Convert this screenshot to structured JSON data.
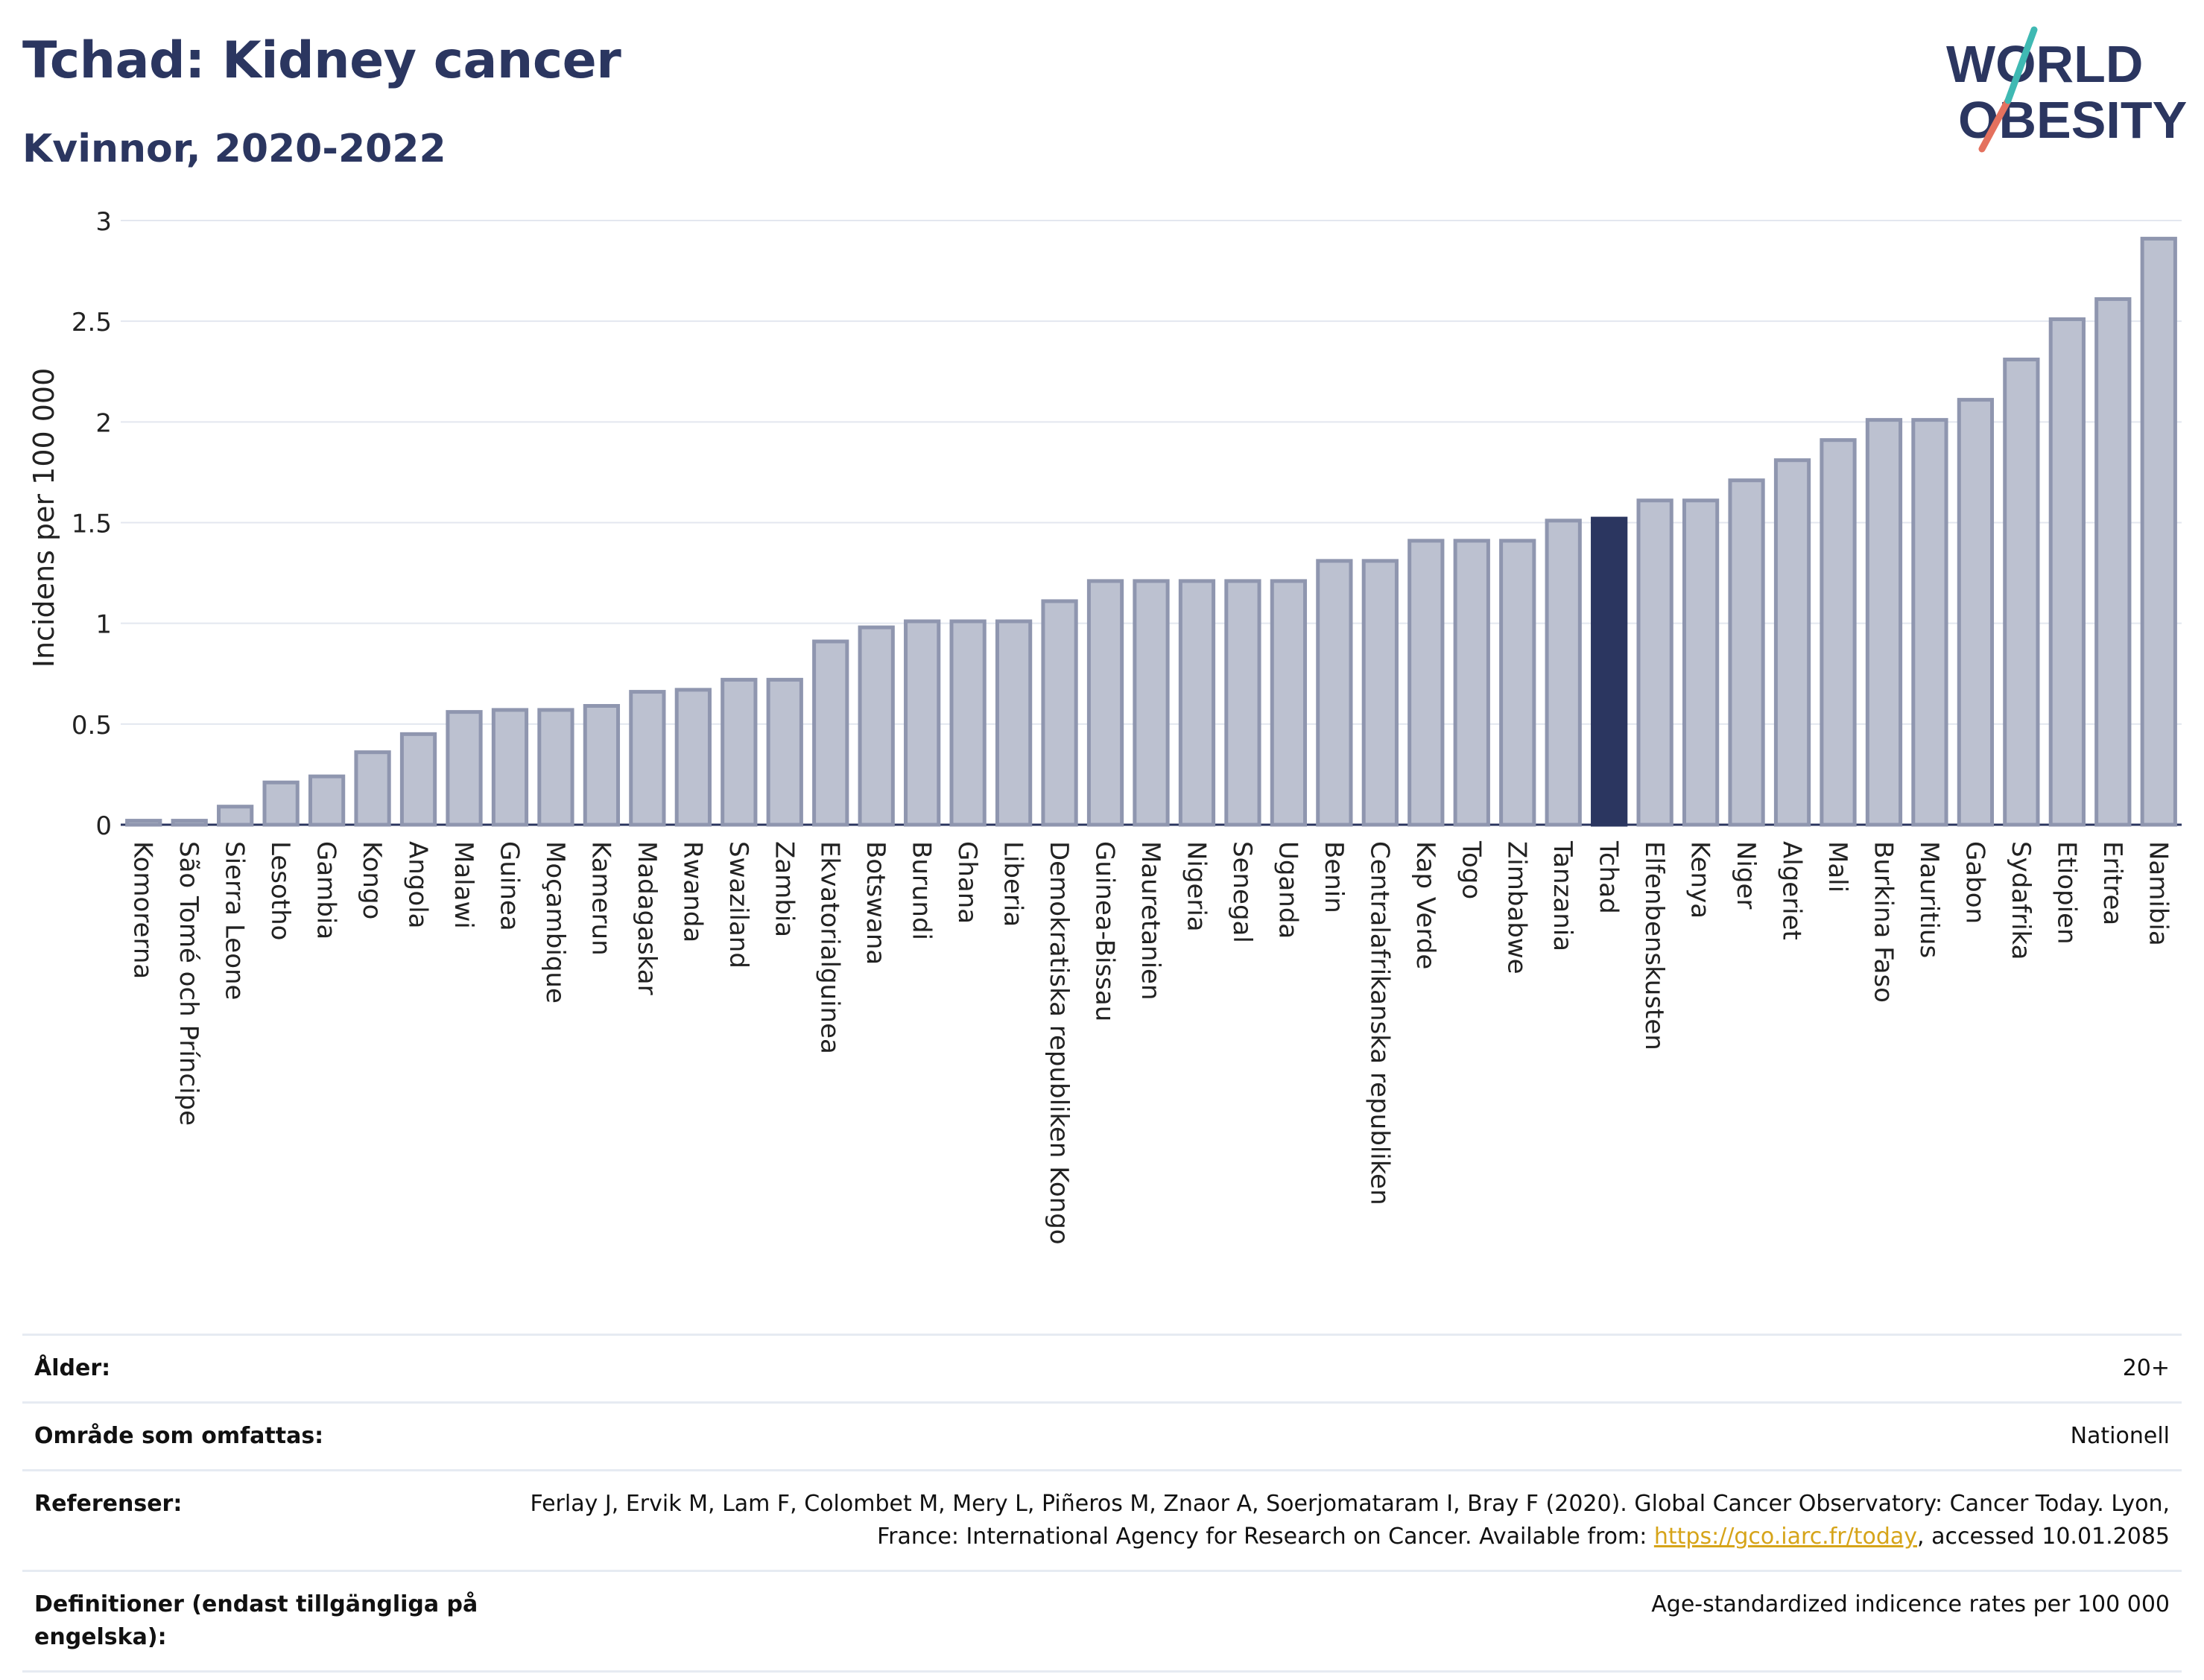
{
  "header": {
    "title": "Tchad: Kidney cancer",
    "subtitle": "Kvinnor, 2020-2022"
  },
  "logo": {
    "line1": "WORLD",
    "line2": "OBESITY"
  },
  "colors": {
    "bar": "#bcc1d0",
    "bar_stroke": "#8f96af",
    "highlight": "#2b3660",
    "title": "#2b3660",
    "logo_slash_teal": "#3fb9b3",
    "logo_slash_red": "#e4715e"
  },
  "chart_data": {
    "type": "bar",
    "ylabel": "Incidens per 100 000",
    "ylim": [
      0,
      3
    ],
    "yticks": [
      "0",
      "0.5",
      "1",
      "1.5",
      "2",
      "2.5",
      "3"
    ],
    "highlight": "Tchad",
    "categories": [
      "Komorerna",
      "São Tomé och Príncipe",
      "Sierra Leone",
      "Lesotho",
      "Gambia",
      "Kongo",
      "Angola",
      "Malawi",
      "Guinea",
      "Moçambique",
      "Kamerun",
      "Madagaskar",
      "Rwanda",
      "Swaziland",
      "Zambia",
      "Ekvatorialguinea",
      "Botswana",
      "Burundi",
      "Ghana",
      "Liberia",
      "Demokratiska republiken Kongo",
      "Guinea-Bissau",
      "Mauretanien",
      "Nigeria",
      "Senegal",
      "Uganda",
      "Benin",
      "Centralafrikanska republiken",
      "Kap Verde",
      "Togo",
      "Zimbabwe",
      "Tanzania",
      "Tchad",
      "Elfenbenskusten",
      "Kenya",
      "Niger",
      "Algeriet",
      "Mali",
      "Burkina Faso",
      "Mauritius",
      "Gabon",
      "Sydafrika",
      "Etiopien",
      "Eritrea",
      "Namibia"
    ],
    "values": [
      0.02,
      0.02,
      0.09,
      0.21,
      0.24,
      0.36,
      0.45,
      0.56,
      0.57,
      0.57,
      0.59,
      0.66,
      0.67,
      0.72,
      0.72,
      0.91,
      0.98,
      1.01,
      1.01,
      1.01,
      1.11,
      1.21,
      1.21,
      1.21,
      1.21,
      1.21,
      1.31,
      1.31,
      1.41,
      1.41,
      1.41,
      1.51,
      1.52,
      1.61,
      1.61,
      1.71,
      1.81,
      1.91,
      2.01,
      2.01,
      2.11,
      2.31,
      2.51,
      2.61,
      2.91
    ],
    "grid": true
  },
  "info": [
    {
      "label": "Ålder:",
      "value": "20+"
    },
    {
      "label": "Område som omfattas:",
      "value": "Nationell"
    },
    {
      "label": "Referenser:",
      "value_before": "Ferlay J, Ervik M, Lam F, Colombet M, Mery L, Piñeros M, Znaor A, Soerjomataram I, Bray F (2020). Global Cancer Observatory: Cancer Today. Lyon, France: International Agency for Research on Cancer. Available from: ",
      "link": "https://gco.iarc.fr/today",
      "value_after": ", accessed 10.01.2085"
    },
    {
      "label": "Definitioner (endast tillgängliga på engelska):",
      "value": "Age-standardized indicence rates per 100 000"
    }
  ]
}
